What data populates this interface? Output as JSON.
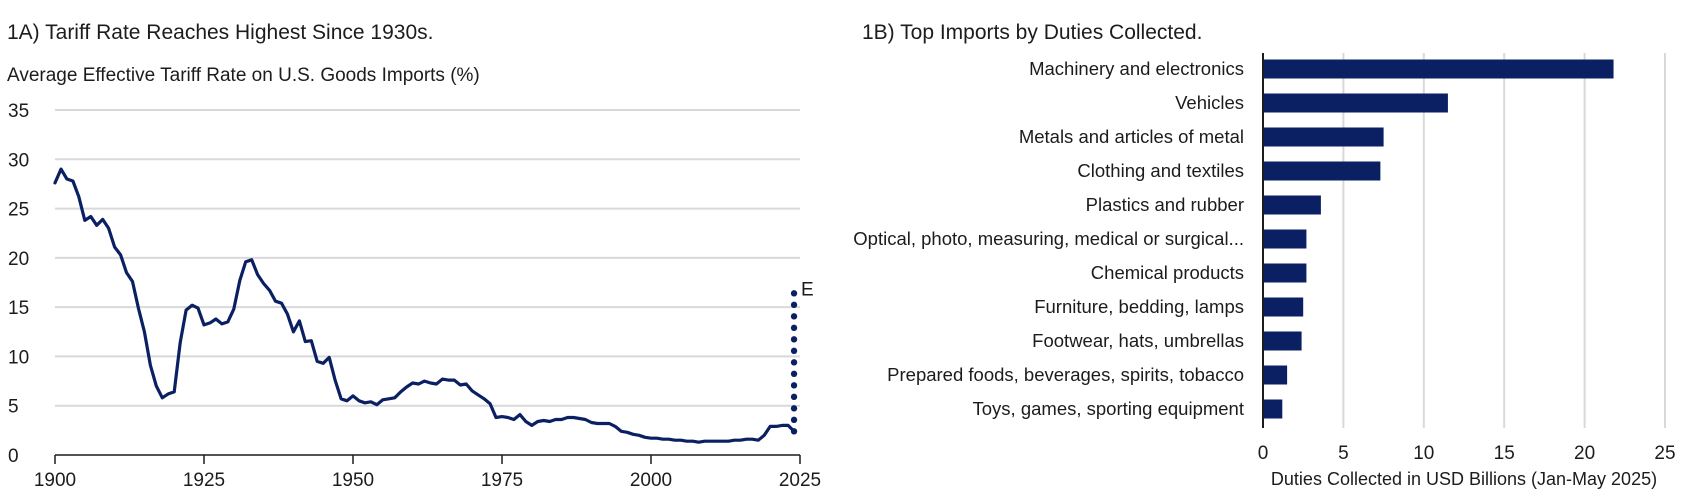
{
  "panels": {
    "left": {
      "title": "1A) Tariff Rate Reaches Highest Since 1930s.",
      "subtitle": "Average Effective Tariff Rate on U.S. Goods Imports (%)"
    },
    "right": {
      "title": "1B) Top Imports by Duties Collected."
    }
  },
  "chart_data": [
    {
      "type": "line",
      "title": "1A) Tariff Rate Reaches Highest Since 1930s.",
      "ylabel": "Average Effective Tariff Rate on U.S. Goods Imports (%)",
      "xlim": [
        1900,
        2025
      ],
      "ylim": [
        0,
        35
      ],
      "x_ticks": [
        1900,
        1925,
        1950,
        1975,
        2000,
        2025
      ],
      "y_ticks": [
        0,
        5,
        10,
        15,
        20,
        25,
        30,
        35
      ],
      "grid": true,
      "line_color": "#0b2063",
      "series": [
        {
          "x": [
            1900,
            1901,
            1902,
            1903,
            1904,
            1905,
            1906,
            1907,
            1908,
            1909,
            1910,
            1911,
            1912,
            1913,
            1914,
            1915,
            1916,
            1917,
            1918,
            1919,
            1920,
            1921,
            1922,
            1923,
            1924,
            1925,
            1926,
            1927,
            1928,
            1929,
            1930,
            1931,
            1932,
            1933,
            1934,
            1935,
            1936,
            1937,
            1938,
            1939,
            1940,
            1941,
            1942,
            1943,
            1944,
            1945,
            1946,
            1947,
            1948,
            1949,
            1950,
            1951,
            1952,
            1953,
            1954,
            1955,
            1956,
            1957,
            1958,
            1959,
            1960,
            1961,
            1962,
            1963,
            1964,
            1965,
            1966,
            1967,
            1968,
            1969,
            1970,
            1971,
            1972,
            1973,
            1974,
            1975,
            1976,
            1977,
            1978,
            1979,
            1980,
            1981,
            1982,
            1983,
            1984,
            1985,
            1986,
            1987,
            1988,
            1989,
            1990,
            1991,
            1992,
            1993,
            1994,
            1995,
            1996,
            1997,
            1998,
            1999,
            2000,
            2001,
            2002,
            2003,
            2004,
            2005,
            2006,
            2007,
            2008,
            2009,
            2010,
            2011,
            2012,
            2013,
            2014,
            2015,
            2016,
            2017,
            2018,
            2019,
            2020,
            2021,
            2022,
            2023,
            2024
          ],
          "y": [
            27.6,
            29.0,
            28.0,
            27.8,
            26.2,
            23.8,
            24.2,
            23.3,
            23.9,
            23.0,
            21.1,
            20.3,
            18.5,
            17.6,
            14.9,
            12.5,
            9.1,
            7.0,
            5.8,
            6.2,
            6.4,
            11.4,
            14.7,
            15.2,
            14.9,
            13.2,
            13.4,
            13.8,
            13.3,
            13.5,
            14.8,
            17.7,
            19.6,
            19.8,
            18.3,
            17.4,
            16.7,
            15.6,
            15.4,
            14.3,
            12.5,
            13.6,
            11.5,
            11.6,
            9.5,
            9.3,
            9.9,
            7.6,
            5.7,
            5.5,
            6.0,
            5.5,
            5.3,
            5.4,
            5.1,
            5.6,
            5.7,
            5.8,
            6.4,
            6.9,
            7.3,
            7.2,
            7.5,
            7.3,
            7.2,
            7.7,
            7.6,
            7.6,
            7.1,
            7.2,
            6.5,
            6.1,
            5.7,
            5.2,
            3.8,
            3.9,
            3.8,
            3.6,
            4.1,
            3.4,
            3.0,
            3.4,
            3.5,
            3.4,
            3.6,
            3.6,
            3.8,
            3.8,
            3.7,
            3.6,
            3.3,
            3.2,
            3.2,
            3.2,
            2.9,
            2.4,
            2.3,
            2.1,
            2.0,
            1.8,
            1.7,
            1.7,
            1.6,
            1.6,
            1.5,
            1.5,
            1.4,
            1.4,
            1.3,
            1.4,
            1.4,
            1.4,
            1.4,
            1.4,
            1.5,
            1.5,
            1.6,
            1.6,
            1.5,
            2.0,
            2.9,
            2.9,
            3.0,
            3.0,
            2.4
          ]
        }
      ],
      "estimate": {
        "label": "E",
        "x": 2024,
        "y_from": 2.4,
        "y_to": 16.4
      }
    },
    {
      "type": "bar",
      "orientation": "horizontal",
      "title": "1B) Top Imports by Duties Collected.",
      "xlabel": "Duties Collected in USD Billions (Jan-May 2025)",
      "xlim": [
        0,
        25
      ],
      "x_ticks": [
        0,
        5,
        10,
        15,
        20,
        25
      ],
      "grid": true,
      "bar_color": "#0b2063",
      "categories": [
        "Machinery and electronics",
        "Vehicles",
        "Metals and articles of metal",
        "Clothing and textiles",
        "Plastics and rubber",
        "Optical, photo, measuring, medical or surgical...",
        "Chemical products",
        "Furniture, bedding, lamps",
        "Footwear, hats, umbrellas",
        "Prepared foods, beverages, spirits, tobacco",
        "Toys, games, sporting equipment"
      ],
      "values": [
        21.8,
        11.5,
        7.5,
        7.3,
        3.6,
        2.7,
        2.7,
        2.5,
        2.4,
        1.5,
        1.2
      ]
    }
  ]
}
